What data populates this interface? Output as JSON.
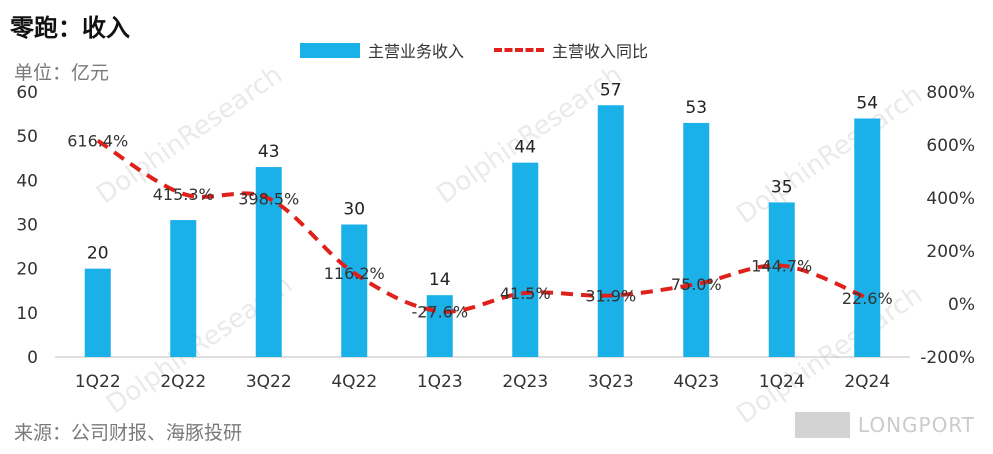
{
  "title": "零跑：收入",
  "unit": "单位：亿元",
  "source": "来源：公司财报、海豚投研",
  "watermark": "DolphinResearch",
  "brand": "LONGPORT",
  "colors": {
    "bar": "#1ab0e8",
    "line": "#e0201a"
  },
  "chart_data": {
    "type": "bar",
    "categories": [
      "1Q22",
      "2Q22",
      "3Q22",
      "4Q22",
      "1Q23",
      "2Q23",
      "3Q23",
      "4Q23",
      "1Q24",
      "2Q24"
    ],
    "series": [
      {
        "name": "主营业务收入",
        "type": "bar",
        "axis": "left",
        "values": [
          20,
          31,
          43,
          30,
          14,
          44,
          57,
          53,
          35,
          54
        ],
        "labels": [
          "20",
          "",
          "43",
          "30",
          "14",
          "44",
          "57",
          "53",
          "35",
          "54"
        ]
      },
      {
        "name": "主营收入同比",
        "type": "line",
        "axis": "right",
        "values": [
          616.4,
          415.3,
          398.5,
          116.2,
          -27.6,
          41.5,
          31.9,
          75.0,
          144.7,
          22.6
        ],
        "labels": [
          "616.4%",
          "415.3%",
          "398.5%",
          "116.2%",
          "-27.6%",
          "41.5%",
          "31.9%",
          "75.0%",
          "144.7%",
          "22.6%"
        ]
      }
    ],
    "y_left": {
      "min": 0,
      "max": 60,
      "ticks": [
        0,
        10,
        20,
        30,
        40,
        50,
        60
      ]
    },
    "y_right": {
      "min": -200,
      "max": 800,
      "ticks": [
        "-200%",
        "0%",
        "200%",
        "400%",
        "600%",
        "800%"
      ]
    },
    "legend": "top-center"
  }
}
